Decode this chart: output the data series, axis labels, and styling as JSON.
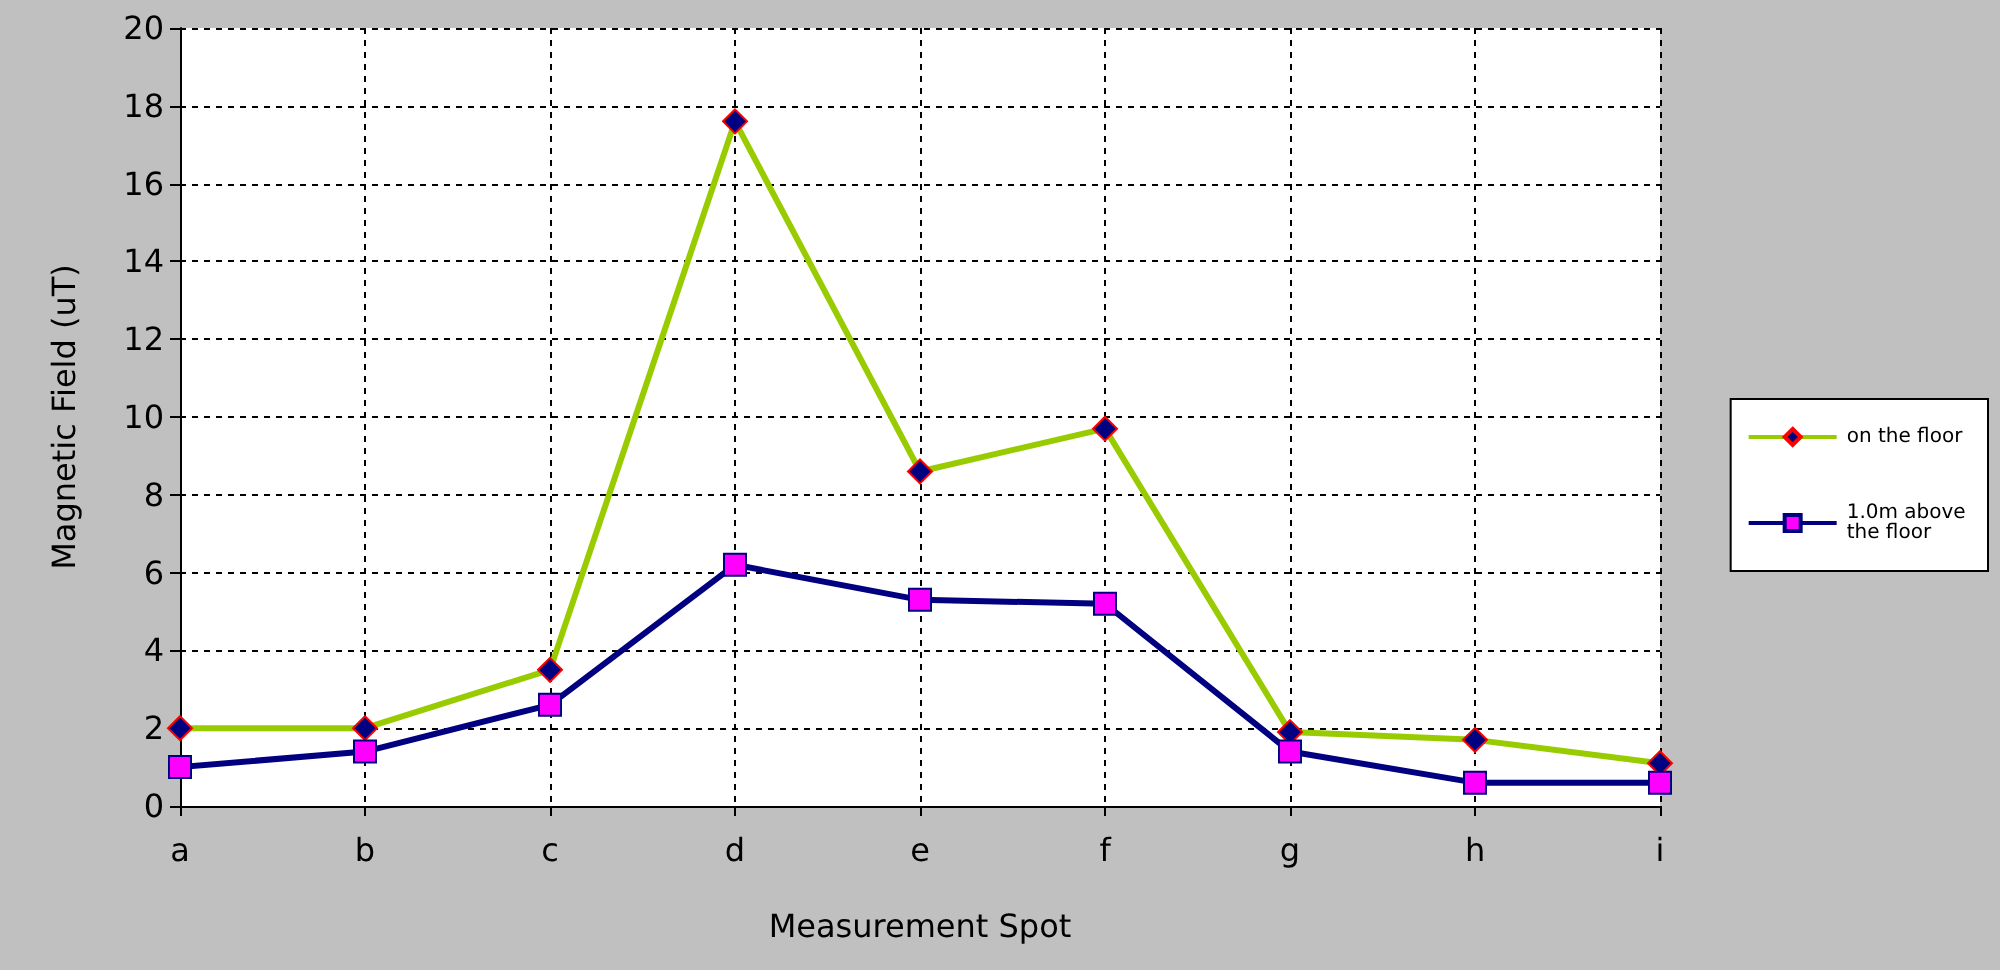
{
  "chart_data": {
    "type": "line",
    "xlabel": "Measurement Spot",
    "ylabel": "Magnetic Field (uT)",
    "categories": [
      "a",
      "b",
      "c",
      "d",
      "e",
      "f",
      "g",
      "h",
      "i"
    ],
    "series": [
      {
        "name": "on the floor",
        "color": "#99cc00",
        "marker": "diamond",
        "values": [
          2.0,
          2.0,
          3.5,
          17.6,
          8.6,
          9.7,
          1.9,
          1.7,
          1.1
        ]
      },
      {
        "name": "1.0m above the floor",
        "color": "#000080",
        "marker": "square",
        "values": [
          1.0,
          1.4,
          2.6,
          6.2,
          5.3,
          5.2,
          1.4,
          0.6,
          0.6
        ]
      }
    ],
    "ylim": [
      0,
      20
    ],
    "yticks": [
      0,
      2,
      4,
      6,
      8,
      10,
      12,
      14,
      16,
      18,
      20
    ],
    "grid": true,
    "legend": "right",
    "line_style": "solid"
  }
}
